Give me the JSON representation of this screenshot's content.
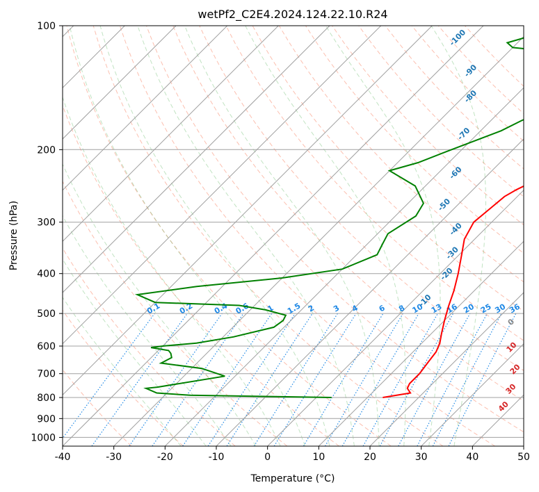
{
  "chart_data": {
    "type": "line",
    "title": "wetPf2_C2E4.2024.124.22.10.R24",
    "xlabel": "Temperature (°C)",
    "ylabel": "Pressure (hPa)",
    "xlim": [
      -40,
      50
    ],
    "ylim": [
      1050,
      100
    ],
    "y_scale": "log",
    "grid": true,
    "x_ticks": [
      -40,
      -30,
      -20,
      -10,
      0,
      10,
      20,
      30,
      40,
      50
    ],
    "y_ticks": [
      100,
      200,
      300,
      400,
      500,
      600,
      700,
      800,
      900,
      1000
    ],
    "skew_degrees": 45,
    "series": [
      {
        "color": "#ff0000",
        "points": [
          [
            13,
            800
          ],
          [
            17.5,
            780
          ],
          [
            16,
            760
          ],
          [
            15.5,
            740
          ],
          [
            15.5,
            700
          ],
          [
            15,
            660
          ],
          [
            14.5,
            620
          ],
          [
            13.5,
            590
          ],
          [
            12,
            560
          ],
          [
            10,
            520
          ],
          [
            8,
            480
          ],
          [
            6,
            440
          ],
          [
            3.5,
            400
          ],
          [
            0.5,
            360
          ],
          [
            -2,
            330
          ],
          [
            -3.5,
            300
          ],
          [
            -3,
            280
          ],
          [
            -2.5,
            260
          ],
          [
            -1.5,
            250
          ],
          [
            0,
            240
          ],
          [
            3,
            225
          ],
          [
            5.5,
            210
          ],
          [
            7,
            200
          ],
          [
            8.5,
            185
          ],
          [
            10.5,
            165
          ],
          [
            12.5,
            150
          ],
          [
            13,
            140
          ],
          [
            13,
            130
          ],
          [
            13.5,
            120
          ],
          [
            16,
            113
          ],
          [
            19,
            108
          ],
          [
            20,
            104
          ],
          [
            20.5,
            100
          ]
        ]
      },
      {
        "color": "#008000",
        "points": [
          [
            3,
            800
          ],
          [
            -25,
            790
          ],
          [
            -32,
            780
          ],
          [
            -35,
            760
          ],
          [
            -33,
            755
          ],
          [
            -22,
            710
          ],
          [
            -28,
            680
          ],
          [
            -37,
            660
          ],
          [
            -36,
            640
          ],
          [
            -37,
            625
          ],
          [
            -38,
            615
          ],
          [
            -42,
            605
          ],
          [
            -40,
            600
          ],
          [
            -34,
            590
          ],
          [
            -28,
            570
          ],
          [
            -22,
            540
          ],
          [
            -21.5,
            520
          ],
          [
            -22,
            505
          ],
          [
            -27,
            490
          ],
          [
            -33,
            478
          ],
          [
            -50,
            470
          ],
          [
            -55,
            450
          ],
          [
            -45,
            430
          ],
          [
            -30,
            410
          ],
          [
            -20,
            390
          ],
          [
            -16,
            360
          ],
          [
            -17,
            340
          ],
          [
            -18,
            320
          ],
          [
            -16,
            290
          ],
          [
            -17,
            270
          ],
          [
            -22,
            245
          ],
          [
            -30,
            225
          ],
          [
            -26,
            215
          ],
          [
            -22,
            200
          ],
          [
            -16,
            180
          ],
          [
            -14,
            170
          ],
          [
            -10,
            155
          ],
          [
            -5,
            140
          ],
          [
            -5,
            130
          ],
          [
            -10,
            122
          ],
          [
            -20,
            116
          ],
          [
            -30,
            113
          ],
          [
            -32,
            110
          ],
          [
            -28,
            105
          ],
          [
            -27,
            100
          ]
        ]
      }
    ],
    "dry_adiabats": [
      -30,
      -20,
      -10,
      0,
      10,
      20,
      30,
      40,
      50,
      60,
      70,
      80,
      90,
      100,
      110,
      120,
      130,
      140,
      150,
      160,
      170
    ],
    "moist_adiabats": [
      -20,
      -15,
      -10,
      -5,
      0,
      5,
      10,
      15,
      20,
      25,
      30,
      35
    ],
    "mixing_ratios": [
      "0.1",
      "0.2",
      "0.4",
      "0.6",
      "1",
      "1.5",
      "2",
      "3",
      "4",
      "6",
      "8",
      "10",
      "13",
      "16",
      "20",
      "25",
      "30",
      "36"
    ],
    "height_isolines_labels": [
      "-100",
      "-90",
      "-80",
      "-70",
      "-60",
      "-50",
      "-40",
      "-30",
      "-20",
      "-10"
    ],
    "wetbulb_labels": [
      "0",
      "10",
      "20",
      "30",
      "40"
    ]
  }
}
